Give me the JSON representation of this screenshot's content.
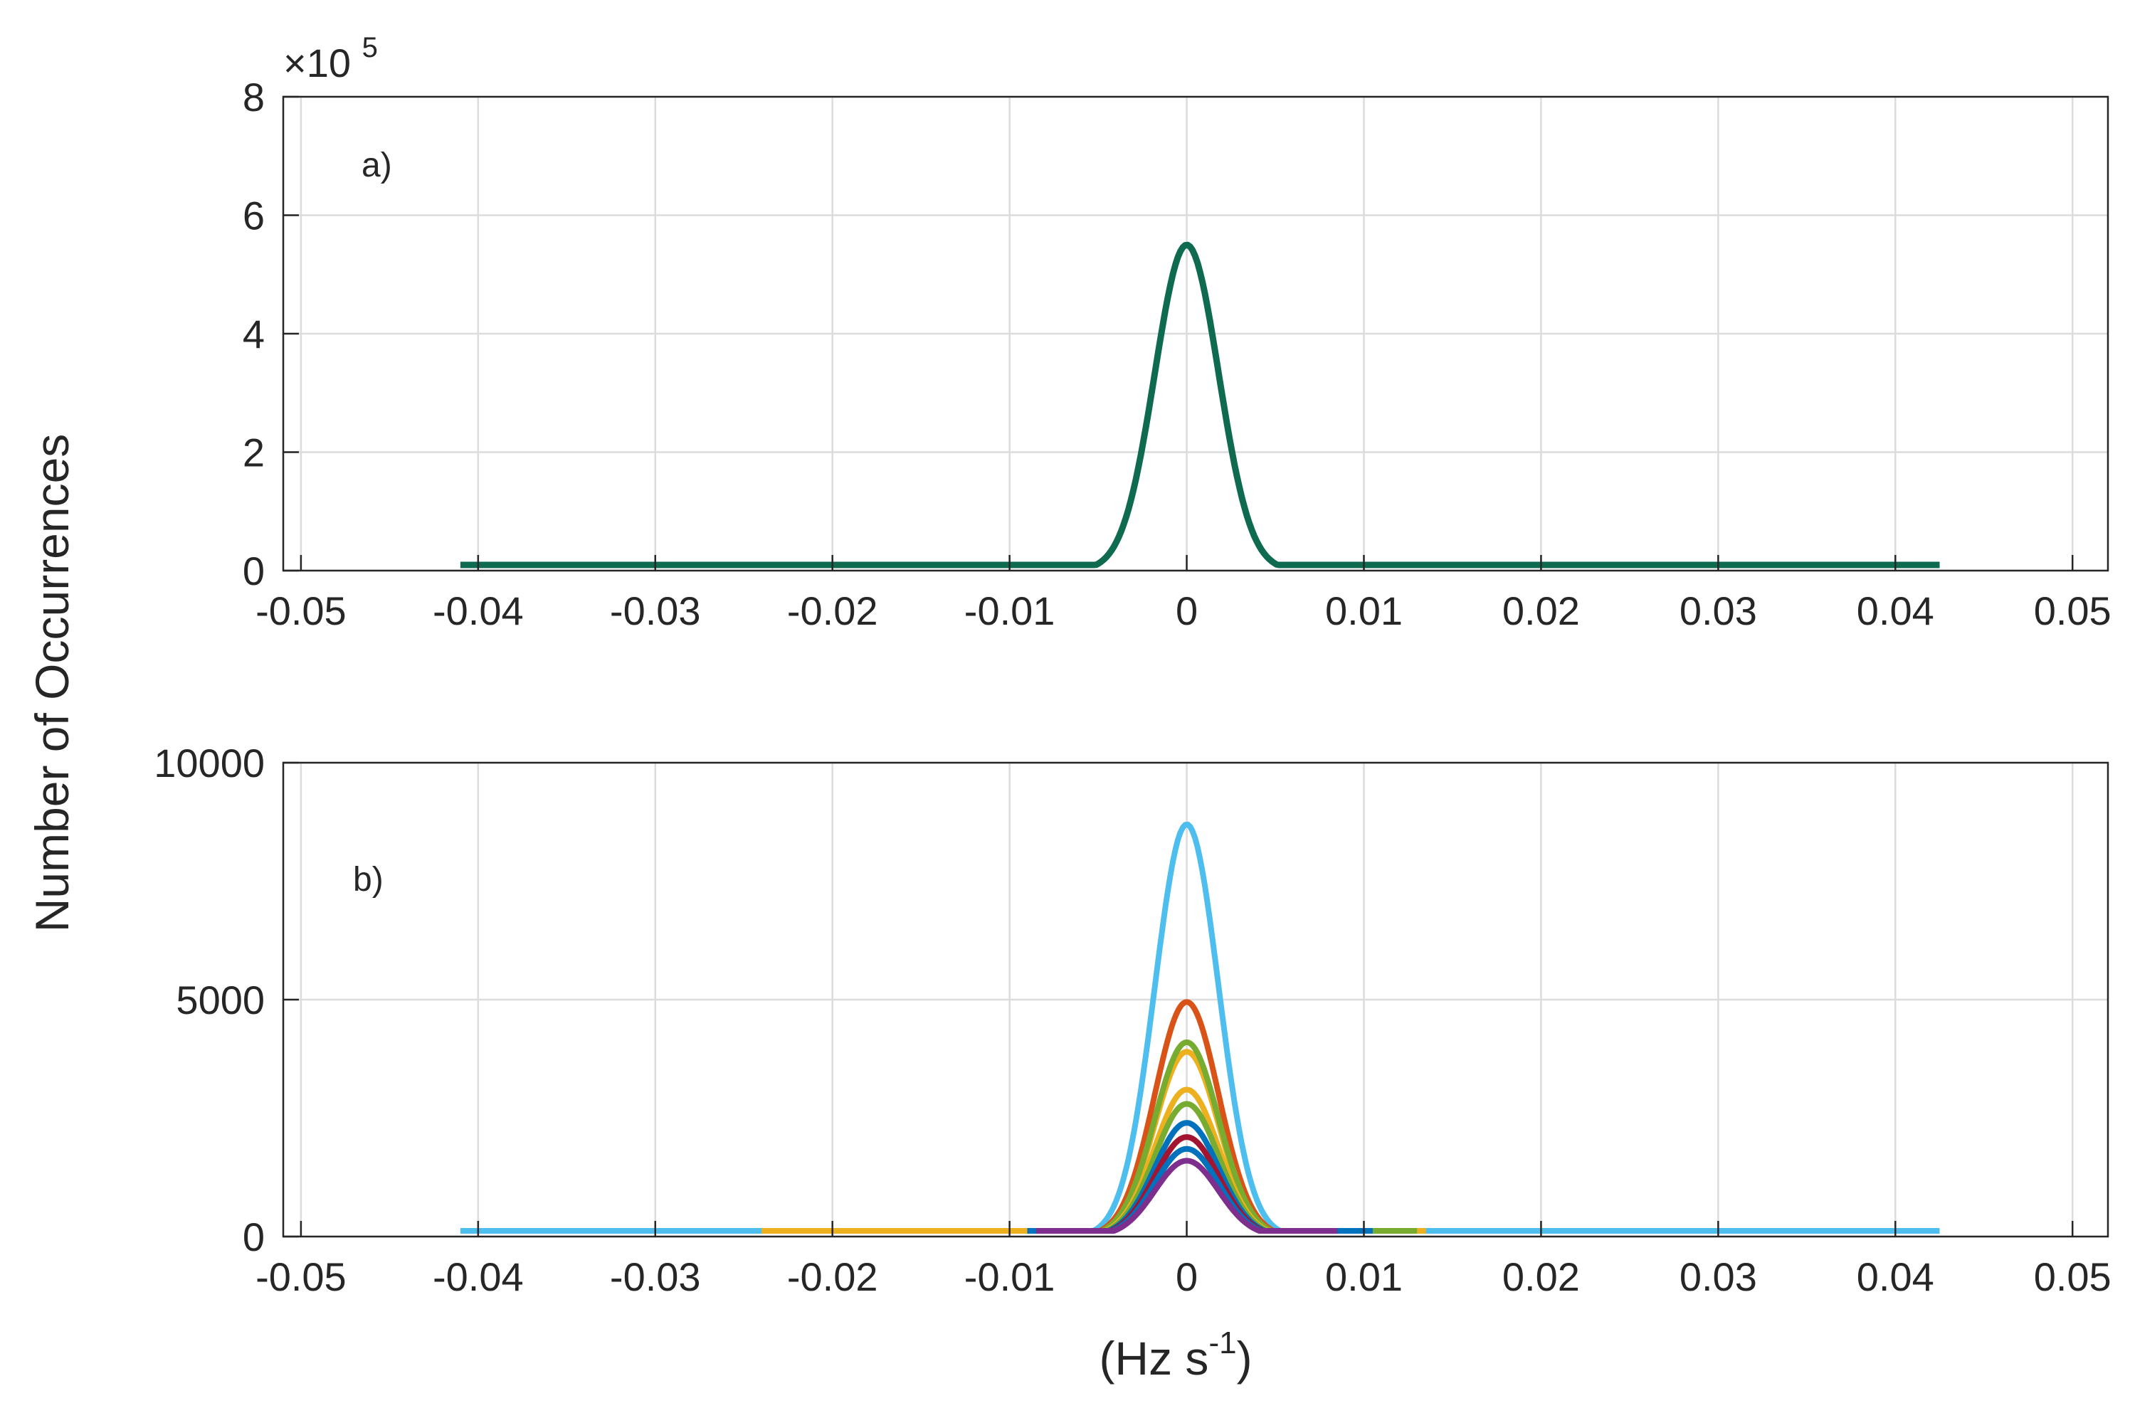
{
  "chart_data": [
    {
      "type": "line",
      "panel_label": "a)",
      "ylabel": "Number of Occurrences",
      "y_exponent": "5",
      "y_exponent_prefix": "×10",
      "xlim": [
        -0.051,
        0.052
      ],
      "ylim": [
        0,
        8
      ],
      "xticks": [
        -0.05,
        -0.04,
        -0.03,
        -0.02,
        -0.01,
        0,
        0.01,
        0.02,
        0.03,
        0.04,
        0.05
      ],
      "xtick_labels": [
        "-0.05",
        "-0.04",
        "-0.03",
        "-0.02",
        "-0.01",
        "0",
        "0.01",
        "0.02",
        "0.03",
        "0.04",
        "0.05"
      ],
      "yticks": [
        0,
        2,
        4,
        6,
        8
      ],
      "ytick_labels": [
        "0",
        "2",
        "4",
        "6",
        "8"
      ],
      "grid": true,
      "series": [
        {
          "color": "#0e6b50",
          "peak": 5.5,
          "sigma": 0.0018,
          "x_range": [
            -0.041,
            0.0425
          ]
        }
      ]
    },
    {
      "type": "line",
      "panel_label": "b)",
      "xlabel": "(Hz s",
      "xlabel_sup": "-1",
      "xlabel_end": ")",
      "xlim": [
        -0.051,
        0.052
      ],
      "ylim": [
        0,
        10000
      ],
      "xticks": [
        -0.05,
        -0.04,
        -0.03,
        -0.02,
        -0.01,
        0,
        0.01,
        0.02,
        0.03,
        0.04,
        0.05
      ],
      "xtick_labels": [
        "-0.05",
        "-0.04",
        "-0.03",
        "-0.02",
        "-0.01",
        "0",
        "0.01",
        "0.02",
        "0.03",
        "0.04",
        "0.05"
      ],
      "yticks": [
        0,
        5000,
        10000
      ],
      "ytick_labels": [
        "0",
        "5000",
        "10000"
      ],
      "grid": true,
      "series": [
        {
          "color": "#4dbeee",
          "peak": 8700,
          "sigma": 0.0018,
          "x_range": [
            -0.041,
            0.0425
          ]
        },
        {
          "color": "#edb120",
          "peak": 3900,
          "sigma": 0.0018,
          "x_range": [
            -0.024,
            0.0135
          ]
        },
        {
          "color": "#d95319",
          "peak": 4950,
          "sigma": 0.0018,
          "x_range": [
            -0.009,
            0.009
          ]
        },
        {
          "color": "#77ac30",
          "peak": 4100,
          "sigma": 0.0018,
          "x_range": [
            -0.009,
            0.013
          ]
        },
        {
          "color": "#edb120",
          "peak": 3100,
          "sigma": 0.0018,
          "x_range": [
            -0.009,
            0.009
          ]
        },
        {
          "color": "#77ac30",
          "peak": 2800,
          "sigma": 0.0018,
          "x_range": [
            -0.009,
            0.009
          ]
        },
        {
          "color": "#0072bd",
          "peak": 2400,
          "sigma": 0.0018,
          "x_range": [
            -0.009,
            0.0105
          ]
        },
        {
          "color": "#a2142f",
          "peak": 2100,
          "sigma": 0.0018,
          "x_range": [
            -0.009,
            0.009
          ]
        },
        {
          "color": "#0072bd",
          "peak": 1850,
          "sigma": 0.0018,
          "x_range": [
            -0.009,
            0.009
          ]
        },
        {
          "color": "#7e2f8e",
          "peak": 1600,
          "sigma": 0.0018,
          "x_range": [
            -0.0085,
            0.0085
          ]
        }
      ]
    }
  ]
}
